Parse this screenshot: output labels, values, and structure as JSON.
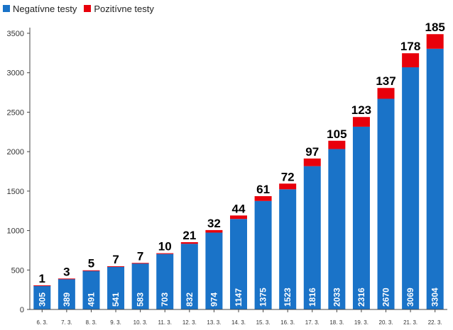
{
  "chart_data": {
    "type": "bar",
    "stacked": true,
    "categories": [
      "6. 3.",
      "7. 3.",
      "8. 3.",
      "9. 3.",
      "10. 3.",
      "11. 3.",
      "12. 3.",
      "13. 3.",
      "14. 3.",
      "15. 3.",
      "16. 3.",
      "17. 3.",
      "18. 3.",
      "19. 3.",
      "20. 3.",
      "21. 3.",
      "22. 3."
    ],
    "series": [
      {
        "name": "Negatívne testy",
        "color": "#1a73c8",
        "values": [
          305,
          389,
          491,
          541,
          583,
          703,
          832,
          974,
          1147,
          1375,
          1523,
          1816,
          2033,
          2316,
          2670,
          3069,
          3304
        ]
      },
      {
        "name": "Pozitívne testy",
        "color": "#e8000b",
        "values": [
          1,
          3,
          5,
          7,
          7,
          10,
          21,
          32,
          44,
          61,
          72,
          97,
          105,
          123,
          137,
          178,
          185
        ]
      }
    ],
    "yticks": [
      0,
      500,
      1000,
      1500,
      2000,
      2500,
      3000,
      3500
    ],
    "ylim": [
      0,
      3500
    ],
    "grid": false,
    "legend": "top-left"
  }
}
